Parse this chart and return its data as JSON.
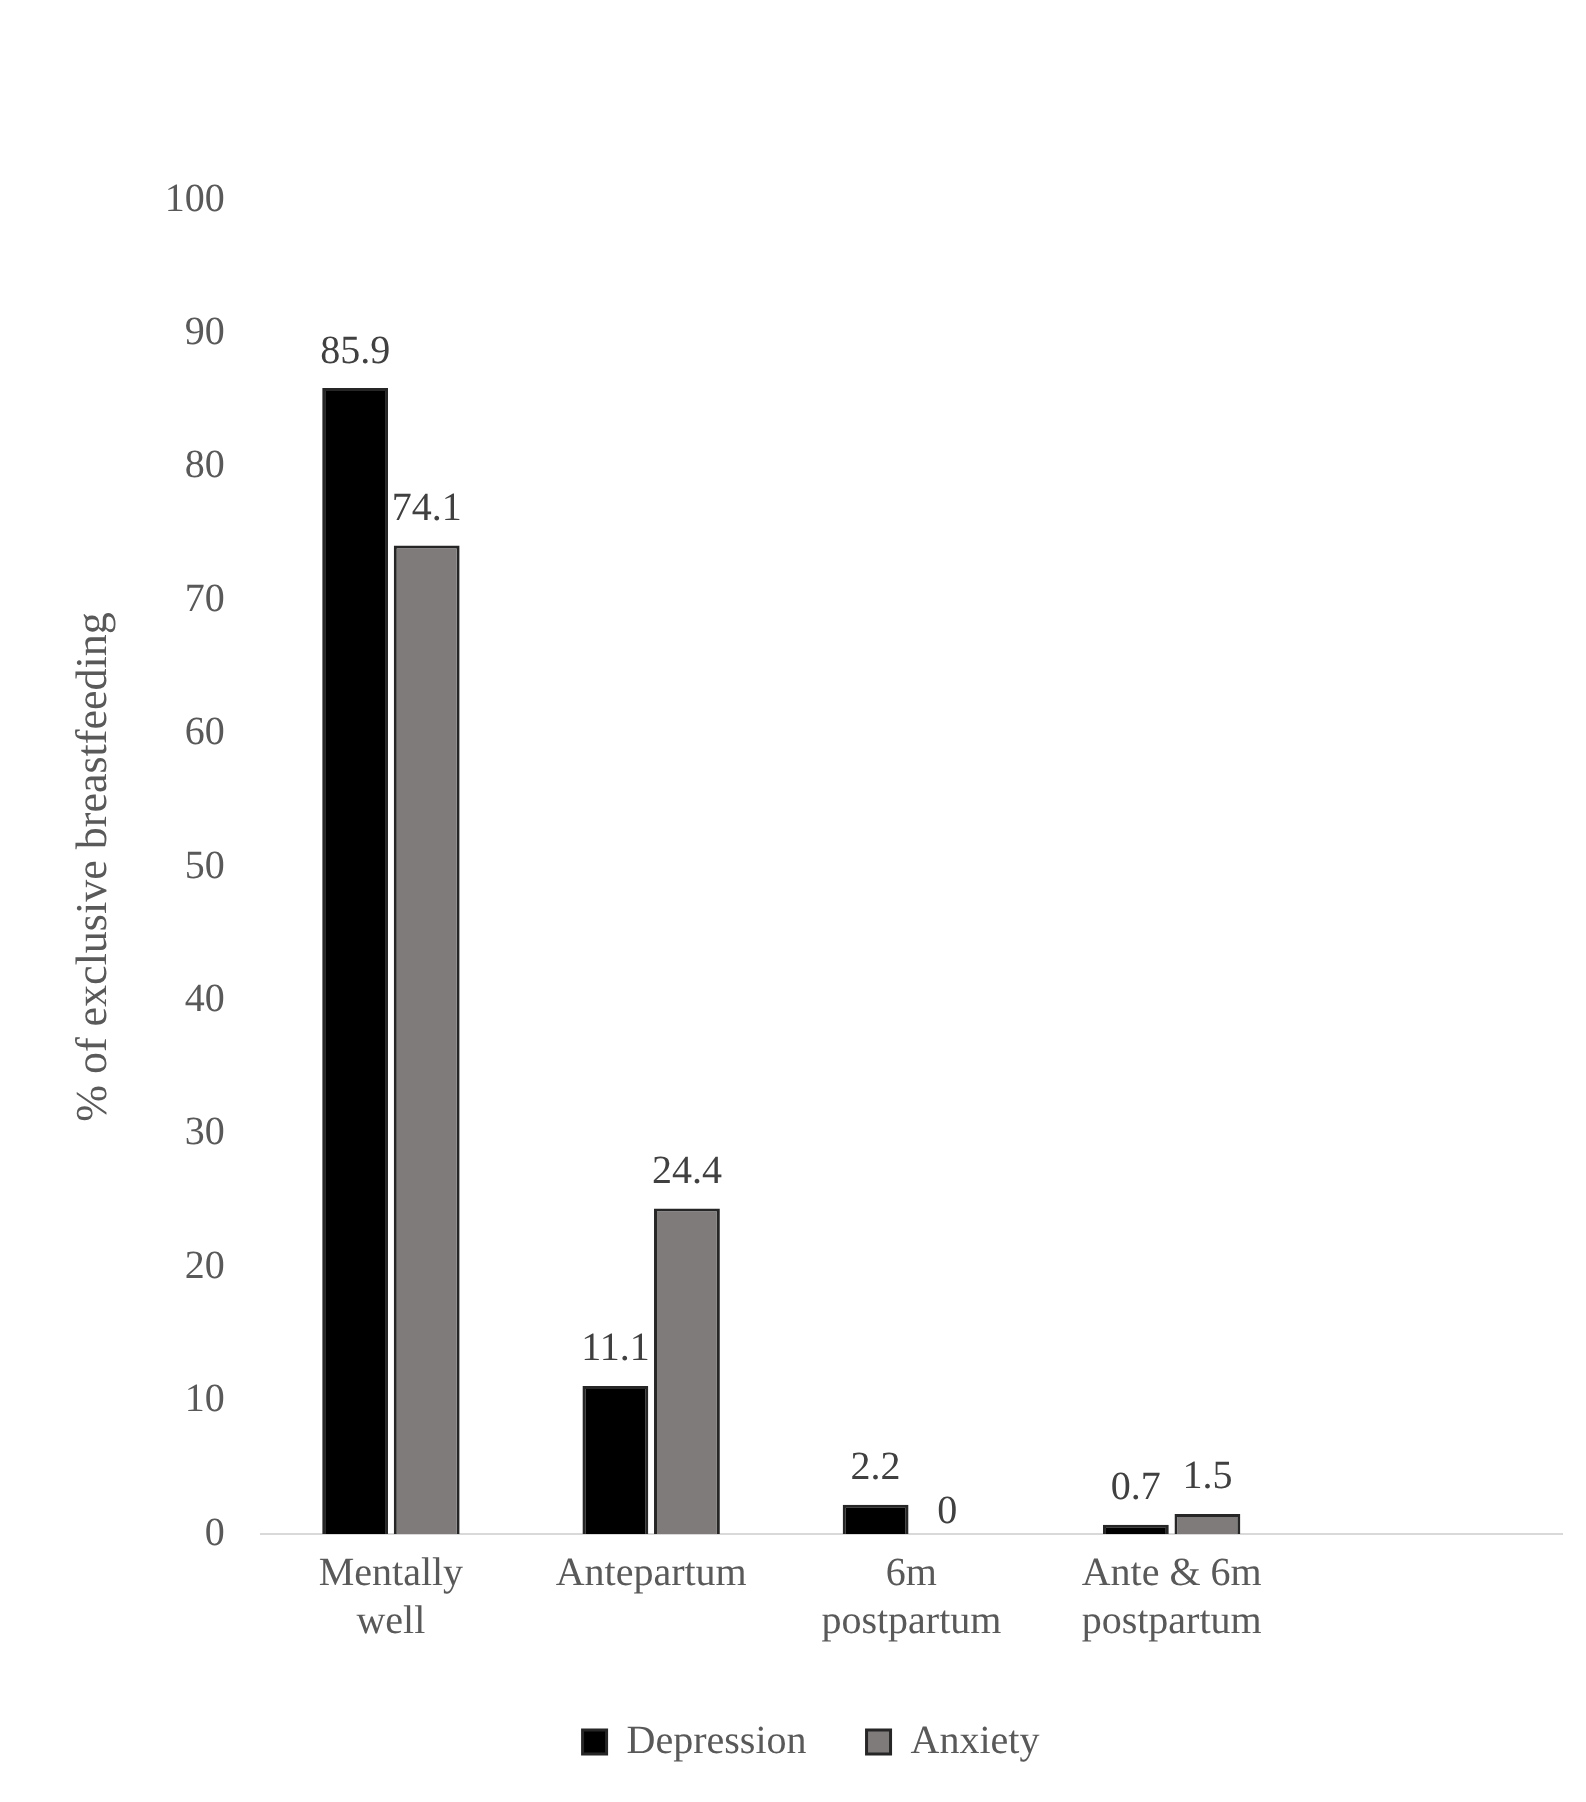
{
  "chart_data": {
    "type": "bar",
    "ylabel": "% of exclusive breastfeeding",
    "categories": [
      "Mentally well",
      "Antepartum",
      "6m postpartum",
      "Ante & 6m postpartum",
      null
    ],
    "series": [
      {
        "name": "Depression",
        "color": "#000000",
        "values": [
          85.9,
          11.1,
          2.2,
          0.7,
          null
        ]
      },
      {
        "name": "Anxiety",
        "color": "#7f7b7b",
        "values": [
          74.1,
          24.4,
          0,
          1.5,
          null
        ]
      }
    ],
    "ylim": [
      0,
      100
    ],
    "yticks": [
      0,
      10,
      20,
      30,
      40,
      50,
      60,
      70,
      80,
      90,
      100
    ],
    "grid": false,
    "legend": "bottom",
    "data_labels": true
  }
}
